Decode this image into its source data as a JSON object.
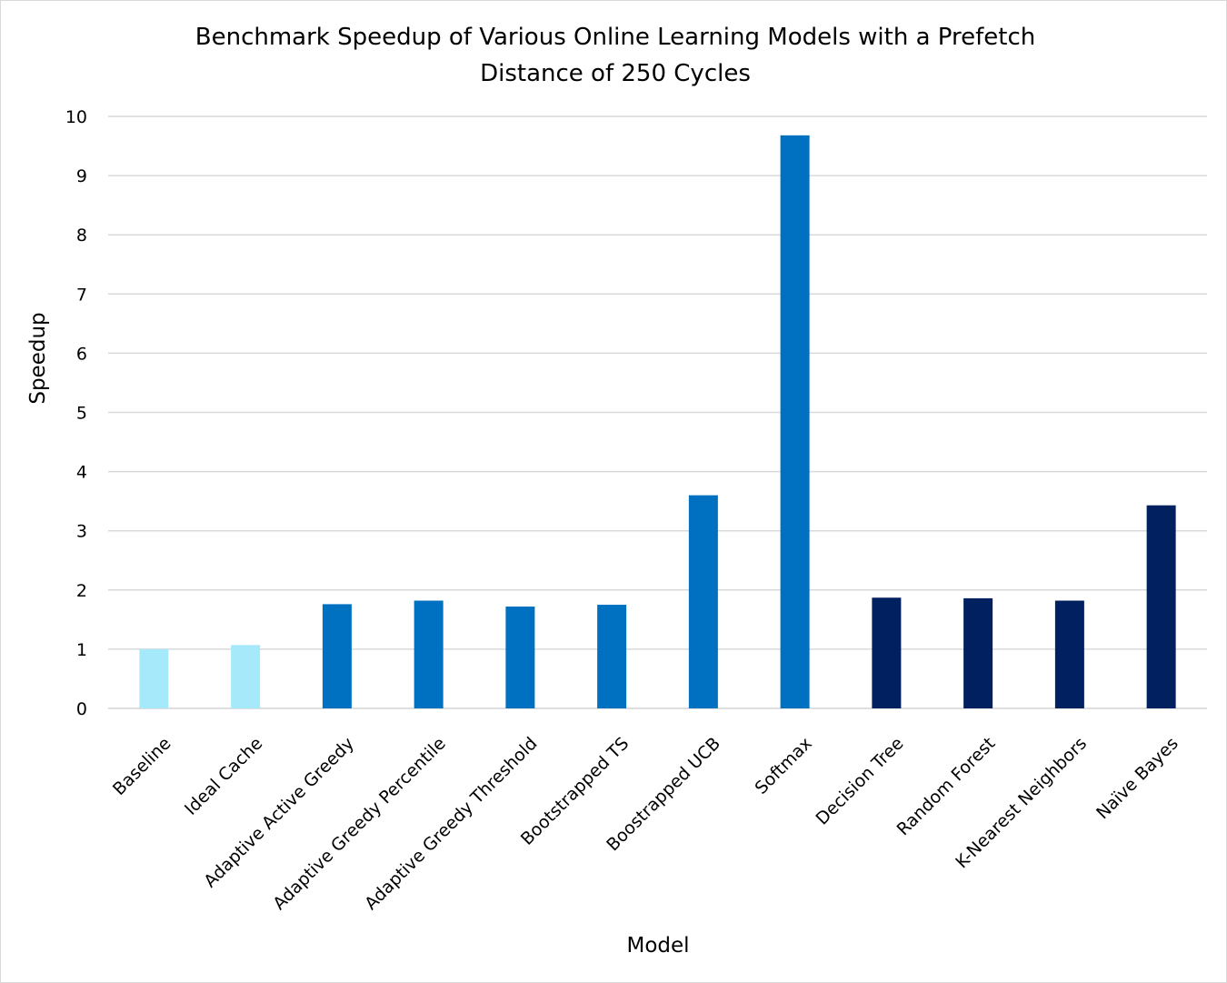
{
  "chart_data": {
    "type": "bar",
    "title": "Benchmark Speedup of Various Online Learning Models with a Prefetch Distance of 250 Cycles",
    "title_lines": [
      "Benchmark Speedup of Various Online Learning Models with a Prefetch",
      "Distance of 250 Cycles"
    ],
    "xlabel": "Model",
    "ylabel": "Speedup",
    "ylim": [
      0,
      10
    ],
    "yticks": [
      "0",
      "1",
      "2",
      "3",
      "4",
      "5",
      "6",
      "7",
      "8",
      "9",
      "10"
    ],
    "grid": true,
    "legend": "none",
    "categories": [
      "Baseline",
      "Ideal Cache",
      "Adaptive Active Greedy",
      "Adaptive Greedy Percentile",
      "Adaptive Greedy Threshold",
      "Bootstrapped TS",
      "Boostrapped UCB",
      "Softmax",
      "Decision Tree",
      "Random Forest",
      "K-Nearest Neighbors",
      "Naïve Bayes"
    ],
    "values": [
      1.0,
      1.07,
      1.76,
      1.82,
      1.72,
      1.75,
      3.6,
      9.68,
      1.87,
      1.86,
      1.82,
      3.43
    ],
    "colors": [
      "#a6e9fb",
      "#a6e9fb",
      "#0070c0",
      "#0070c0",
      "#0070c0",
      "#0070c0",
      "#0070c0",
      "#0070c0",
      "#00205f",
      "#00205f",
      "#00205f",
      "#00205f"
    ]
  }
}
